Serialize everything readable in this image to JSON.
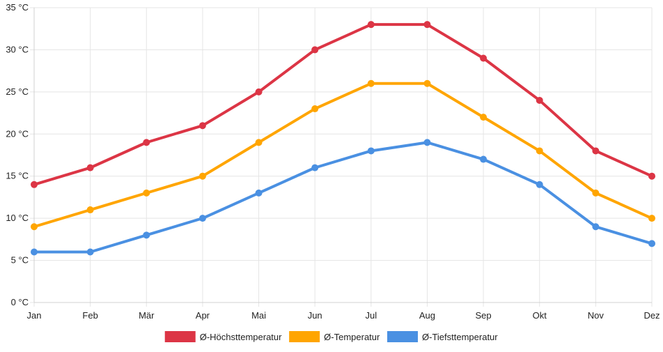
{
  "chart_data": {
    "type": "line",
    "categories": [
      "Jan",
      "Feb",
      "Mär",
      "Apr",
      "Mai",
      "Jun",
      "Jul",
      "Aug",
      "Sep",
      "Okt",
      "Nov",
      "Dez"
    ],
    "y_ticks": [
      "0 °C",
      "5 °C",
      "10 °C",
      "15 °C",
      "20 °C",
      "25 °C",
      "30 °C",
      "35 °C"
    ],
    "ylim": [
      0,
      35
    ],
    "grid": true,
    "legend_position": "bottom",
    "series": [
      {
        "name": "Ø-Höchsttemperatur",
        "color": "#dc3545",
        "values": [
          14,
          16,
          19,
          21,
          25,
          30,
          33,
          33,
          29,
          24,
          18,
          15
        ]
      },
      {
        "name": "Ø-Temperatur",
        "color": "#ffa500",
        "values": [
          9,
          11,
          13,
          15,
          19,
          23,
          26,
          26,
          22,
          18,
          13,
          10
        ]
      },
      {
        "name": "Ø-Tiefsttemperatur",
        "color": "#4a90e2",
        "values": [
          6,
          6,
          8,
          10,
          13,
          16,
          18,
          19,
          17,
          14,
          9,
          7
        ]
      }
    ]
  }
}
